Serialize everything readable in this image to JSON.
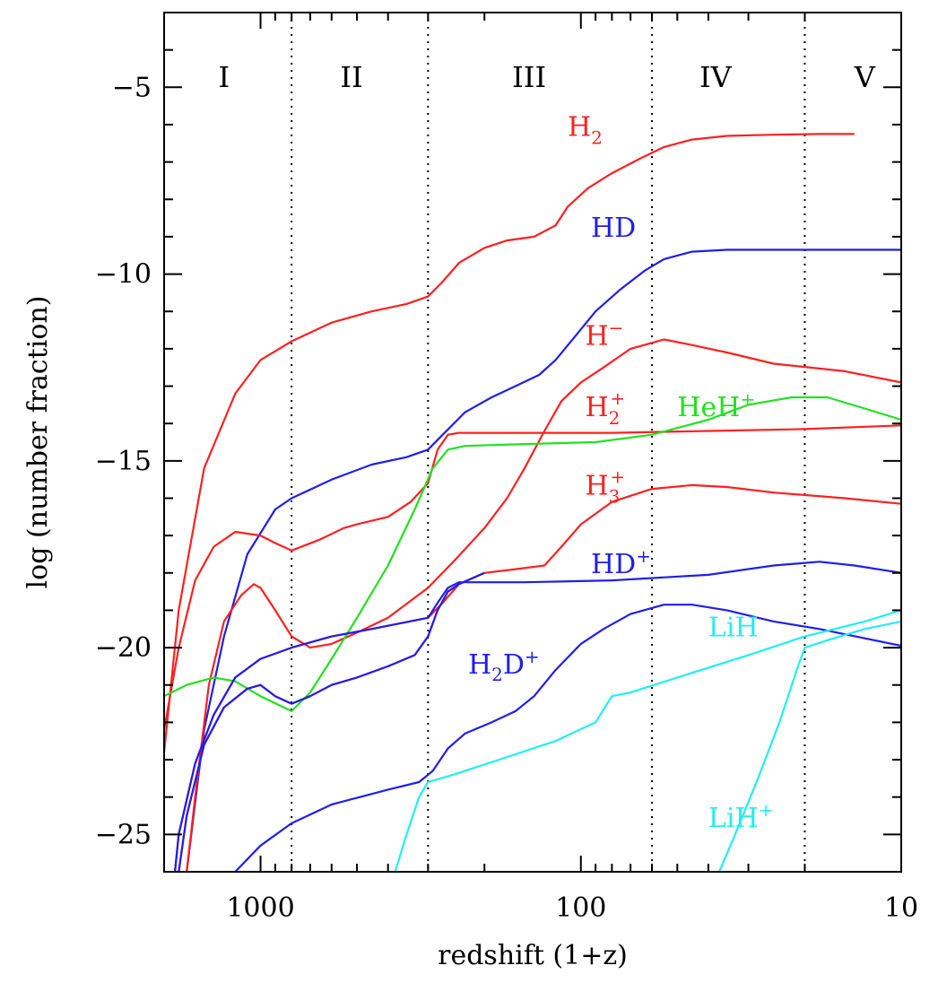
{
  "chart_data": {
    "type": "line",
    "xlabel": "redshift (1+z)",
    "ylabel": "log (number fraction)",
    "x_scale": "log",
    "x_reversed": true,
    "xlim": [
      2000,
      10
    ],
    "ylim": [
      -26,
      -3
    ],
    "x_ticks": [
      {
        "value": 1000,
        "label": "1000"
      },
      {
        "value": 100,
        "label": "100"
      },
      {
        "value": 10,
        "label": "10"
      }
    ],
    "y_ticks": [
      {
        "value": -5,
        "label": "−5"
      },
      {
        "value": -10,
        "label": "−10"
      },
      {
        "value": -15,
        "label": "−15"
      },
      {
        "value": -20,
        "label": "−20"
      },
      {
        "value": -25,
        "label": "−25"
      }
    ],
    "region_boundaries": [
      800,
      300,
      60,
      20
    ],
    "regions": [
      {
        "label": "I",
        "x": 1300
      },
      {
        "label": "II",
        "x": 520
      },
      {
        "label": "III",
        "x": 145
      },
      {
        "label": "IV",
        "x": 38
      },
      {
        "label": "V",
        "x": 13
      }
    ],
    "colors": {
      "red": "#ff2020",
      "blue": "#1f1fe8",
      "green": "#22e022",
      "cyan": "#22eeee",
      "darkred": "#c02040"
    },
    "series": [
      {
        "name_main": "H",
        "name_sub": "2",
        "name_sup": "",
        "color": "#ff2020",
        "label_pos": [
          110,
          -6.3
        ],
        "points": [
          [
            2000,
            -22.8
          ],
          [
            1800,
            -19
          ],
          [
            1500,
            -15.2
          ],
          [
            1200,
            -13.2
          ],
          [
            1000,
            -12.3
          ],
          [
            800,
            -11.8
          ],
          [
            600,
            -11.3
          ],
          [
            450,
            -11
          ],
          [
            350,
            -10.8
          ],
          [
            300,
            -10.6
          ],
          [
            270,
            -10.2
          ],
          [
            240,
            -9.7
          ],
          [
            200,
            -9.3
          ],
          [
            170,
            -9.1
          ],
          [
            140,
            -9
          ],
          [
            120,
            -8.7
          ],
          [
            110,
            -8.2
          ],
          [
            95,
            -7.7
          ],
          [
            80,
            -7.3
          ],
          [
            65,
            -6.9
          ],
          [
            55,
            -6.6
          ],
          [
            45,
            -6.4
          ],
          [
            35,
            -6.3
          ],
          [
            25,
            -6.27
          ],
          [
            18,
            -6.25
          ],
          [
            14,
            -6.25
          ]
        ]
      },
      {
        "name_main": "HD",
        "name_sub": "",
        "name_sup": "",
        "color": "#1f1fe8",
        "label_pos": [
          93,
          -9.0
        ],
        "points": [
          [
            1700,
            -26
          ],
          [
            1500,
            -22.2
          ],
          [
            1300,
            -19.7
          ],
          [
            1100,
            -17.5
          ],
          [
            900,
            -16.3
          ],
          [
            800,
            -16
          ],
          [
            600,
            -15.5
          ],
          [
            450,
            -15.1
          ],
          [
            350,
            -14.9
          ],
          [
            300,
            -14.7
          ],
          [
            270,
            -14.3
          ],
          [
            230,
            -13.7
          ],
          [
            190,
            -13.3
          ],
          [
            160,
            -13
          ],
          [
            135,
            -12.7
          ],
          [
            120,
            -12.3
          ],
          [
            105,
            -11.7
          ],
          [
            90,
            -11
          ],
          [
            75,
            -10.4
          ],
          [
            63,
            -9.9
          ],
          [
            55,
            -9.6
          ],
          [
            45,
            -9.4
          ],
          [
            35,
            -9.35
          ],
          [
            20,
            -9.35
          ],
          [
            10,
            -9.35
          ]
        ]
      },
      {
        "name_main": "H",
        "name_sub": "",
        "name_sup": "−",
        "color": "#ff2020",
        "label_pos": [
          97,
          -11.9
        ],
        "points": [
          [
            1700,
            -26
          ],
          [
            1600,
            -24
          ],
          [
            1450,
            -21
          ],
          [
            1300,
            -19.3
          ],
          [
            1150,
            -18.6
          ],
          [
            1050,
            -18.3
          ],
          [
            1000,
            -18.4
          ],
          [
            900,
            -19
          ],
          [
            800,
            -19.7
          ],
          [
            700,
            -20
          ],
          [
            600,
            -19.9
          ],
          [
            500,
            -19.6
          ],
          [
            400,
            -19.2
          ],
          [
            300,
            -18.4
          ],
          [
            250,
            -17.7
          ],
          [
            200,
            -16.8
          ],
          [
            170,
            -16
          ],
          [
            150,
            -15.2
          ],
          [
            130,
            -14.2
          ],
          [
            115,
            -13.4
          ],
          [
            100,
            -12.9
          ],
          [
            85,
            -12.5
          ],
          [
            70,
            -12
          ],
          [
            55,
            -11.75
          ],
          [
            45,
            -11.9
          ],
          [
            35,
            -12.1
          ],
          [
            25,
            -12.4
          ],
          [
            15,
            -12.6
          ],
          [
            10,
            -12.9
          ]
        ]
      },
      {
        "name_main": "H",
        "name_sub": "2",
        "name_sup": "+",
        "color": "#ff2020",
        "label_pos": [
          97,
          -13.8
        ],
        "points": [
          [
            2000,
            -22.2
          ],
          [
            1800,
            -20
          ],
          [
            1600,
            -18.2
          ],
          [
            1400,
            -17.3
          ],
          [
            1200,
            -16.9
          ],
          [
            1000,
            -17
          ],
          [
            900,
            -17.2
          ],
          [
            800,
            -17.4
          ],
          [
            650,
            -17.1
          ],
          [
            550,
            -16.8
          ],
          [
            500,
            -16.7
          ],
          [
            400,
            -16.5
          ],
          [
            340,
            -16.1
          ],
          [
            300,
            -15.6
          ],
          [
            280,
            -14.7
          ],
          [
            260,
            -14.3
          ],
          [
            240,
            -14.25
          ],
          [
            150,
            -14.25
          ],
          [
            80,
            -14.25
          ],
          [
            40,
            -14.2
          ],
          [
            20,
            -14.15
          ],
          [
            10,
            -14.05
          ]
        ]
      },
      {
        "name_main": "HeH",
        "name_sub": "",
        "name_sup": "+",
        "color": "#22e022",
        "label_pos": [
          50,
          -13.8
        ],
        "points": [
          [
            2000,
            -21.3
          ],
          [
            1700,
            -21
          ],
          [
            1400,
            -20.8
          ],
          [
            1200,
            -20.9
          ],
          [
            1000,
            -21.3
          ],
          [
            800,
            -21.7
          ],
          [
            700,
            -21.2
          ],
          [
            600,
            -20.3
          ],
          [
            500,
            -19.2
          ],
          [
            400,
            -17.8
          ],
          [
            330,
            -16.3
          ],
          [
            290,
            -15.2
          ],
          [
            260,
            -14.7
          ],
          [
            230,
            -14.6
          ],
          [
            150,
            -14.55
          ],
          [
            90,
            -14.5
          ],
          [
            60,
            -14.3
          ],
          [
            40,
            -13.9
          ],
          [
            30,
            -13.5
          ],
          [
            22,
            -13.3
          ],
          [
            17,
            -13.3
          ],
          [
            13,
            -13.6
          ],
          [
            10,
            -13.9
          ]
        ]
      },
      {
        "name_main": "H",
        "name_sub": "3",
        "name_sup": "+",
        "color": "#ff2020",
        "label_pos": [
          97,
          -15.9
        ],
        "points": [
          [
            1850,
            -26
          ],
          [
            1800,
            -25
          ],
          [
            1600,
            -23.1
          ],
          [
            1400,
            -21.8
          ],
          [
            1200,
            -20.8
          ],
          [
            1000,
            -20.3
          ],
          [
            800,
            -20
          ],
          [
            600,
            -19.7
          ],
          [
            450,
            -19.5
          ],
          [
            300,
            -19.2
          ],
          [
            270,
            -18.8
          ],
          [
            240,
            -18.3
          ],
          [
            200,
            -18
          ],
          [
            160,
            -17.9
          ],
          [
            130,
            -17.8
          ],
          [
            115,
            -17.3
          ],
          [
            100,
            -16.7
          ],
          [
            80,
            -16.1
          ],
          [
            60,
            -15.75
          ],
          [
            45,
            -15.65
          ],
          [
            35,
            -15.7
          ],
          [
            25,
            -15.85
          ],
          [
            15,
            -16
          ],
          [
            10,
            -16.15
          ]
        ]
      },
      {
        "name_main": "HD",
        "name_sub": "",
        "name_sup": "+",
        "color": "#1f1fe8",
        "label_pos": [
          93,
          -18.0
        ],
        "points": [
          [
            1850,
            -26
          ],
          [
            1800,
            -25
          ],
          [
            1600,
            -23.1
          ],
          [
            1400,
            -21.8
          ],
          [
            1200,
            -20.8
          ],
          [
            1000,
            -20.3
          ],
          [
            800,
            -20
          ],
          [
            600,
            -19.7
          ],
          [
            450,
            -19.5
          ],
          [
            300,
            -19.2
          ],
          [
            280,
            -18.8
          ],
          [
            260,
            -18.4
          ],
          [
            240,
            -18.25
          ],
          [
            150,
            -18.25
          ],
          [
            80,
            -18.2
          ],
          [
            40,
            -18.05
          ],
          [
            25,
            -17.8
          ],
          [
            18,
            -17.7
          ],
          [
            14,
            -17.8
          ],
          [
            10,
            -18
          ]
        ]
      },
      {
        "name_main": "H",
        "name_sub": "2",
        "name_sup": "",
        "color": "#ff2020",
        "label_pos": [
          0,
          0
        ],
        "no_label": true,
        "points": [
          [
            1800,
            -26
          ],
          [
            1700,
            -24.5
          ],
          [
            1500,
            -22.6
          ],
          [
            1300,
            -21.6
          ],
          [
            1100,
            -21.1
          ],
          [
            1000,
            -21
          ],
          [
            900,
            -21.3
          ],
          [
            800,
            -21.5
          ],
          [
            700,
            -21.3
          ],
          [
            600,
            -21
          ],
          [
            500,
            -20.8
          ],
          [
            400,
            -20.5
          ],
          [
            330,
            -20.2
          ],
          [
            300,
            -19.7
          ],
          [
            280,
            -19
          ],
          [
            260,
            -18.5
          ],
          [
            240,
            -18.3
          ],
          [
            200,
            -18
          ]
        ]
      },
      {
        "name_main": "H",
        "name_sub": "2",
        "name_sup": "",
        "color": "#1f1fe8",
        "label_pos": [
          0,
          0
        ],
        "no_label": true,
        "points": [
          [
            1800,
            -26
          ],
          [
            1700,
            -24.5
          ],
          [
            1500,
            -22.6
          ],
          [
            1300,
            -21.6
          ],
          [
            1100,
            -21.1
          ],
          [
            1000,
            -21
          ],
          [
            900,
            -21.3
          ],
          [
            800,
            -21.5
          ],
          [
            700,
            -21.3
          ],
          [
            600,
            -21
          ],
          [
            500,
            -20.8
          ],
          [
            400,
            -20.5
          ],
          [
            330,
            -20.2
          ],
          [
            300,
            -19.7
          ],
          [
            280,
            -19
          ],
          [
            260,
            -18.5
          ],
          [
            240,
            -18.3
          ],
          [
            200,
            -18
          ]
        ]
      },
      {
        "name_main": "H",
        "name_sub": "2",
        "name_sup": "",
        "color": "#1f1fe8",
        "label_pos": [
          0,
          0
        ],
        "no_label": true,
        "points": [
          [
            1200,
            -26
          ],
          [
            1000,
            -25.3
          ],
          [
            800,
            -24.7
          ],
          [
            600,
            -24.2
          ],
          [
            400,
            -23.8
          ],
          [
            320,
            -23.6
          ],
          [
            290,
            -23.3
          ],
          [
            260,
            -22.7
          ],
          [
            230,
            -22.3
          ],
          [
            190,
            -22
          ],
          [
            160,
            -21.7
          ],
          [
            140,
            -21.3
          ],
          [
            120,
            -20.6
          ],
          [
            100,
            -19.9
          ],
          [
            85,
            -19.5
          ],
          [
            70,
            -19.1
          ],
          [
            55,
            -18.85
          ],
          [
            45,
            -18.85
          ],
          [
            35,
            -19
          ],
          [
            25,
            -19.3
          ],
          [
            18,
            -19.5
          ],
          [
            10,
            -19.95
          ]
        ]
      },
      {
        "name_main": "H",
        "name_sub": "2",
        "name_sup": "D",
        "color": "#1f1fe8",
        "label_pos": [
          225,
          -20.7
        ],
        "points": []
      },
      {
        "name_main": "LiH",
        "name_sub": "",
        "name_sup": "",
        "color": "#22eeee",
        "label_pos": [
          40,
          -19.7
        ],
        "points": [
          [
            380,
            -26
          ],
          [
            350,
            -25
          ],
          [
            320,
            -24
          ],
          [
            300,
            -23.6
          ],
          [
            250,
            -23.4
          ],
          [
            180,
            -23
          ],
          [
            120,
            -22.5
          ],
          [
            90,
            -22
          ],
          [
            80,
            -21.3
          ],
          [
            70,
            -21.2
          ],
          [
            50,
            -20.8
          ],
          [
            30,
            -20.2
          ],
          [
            20,
            -19.7
          ],
          [
            13,
            -19.3
          ],
          [
            10,
            -19
          ]
        ]
      },
      {
        "name_main": "LiH",
        "name_sub": "",
        "name_sup": "+",
        "color": "#22eeee",
        "label_pos": [
          40,
          -24.8
        ],
        "points": [
          [
            37,
            -26
          ],
          [
            33,
            -25
          ],
          [
            28,
            -23.5
          ],
          [
            24,
            -22
          ],
          [
            21,
            -20.5
          ],
          [
            20,
            -20
          ],
          [
            17,
            -19.8
          ],
          [
            13,
            -19.5
          ],
          [
            10,
            -19.3
          ]
        ]
      }
    ],
    "title": ""
  }
}
